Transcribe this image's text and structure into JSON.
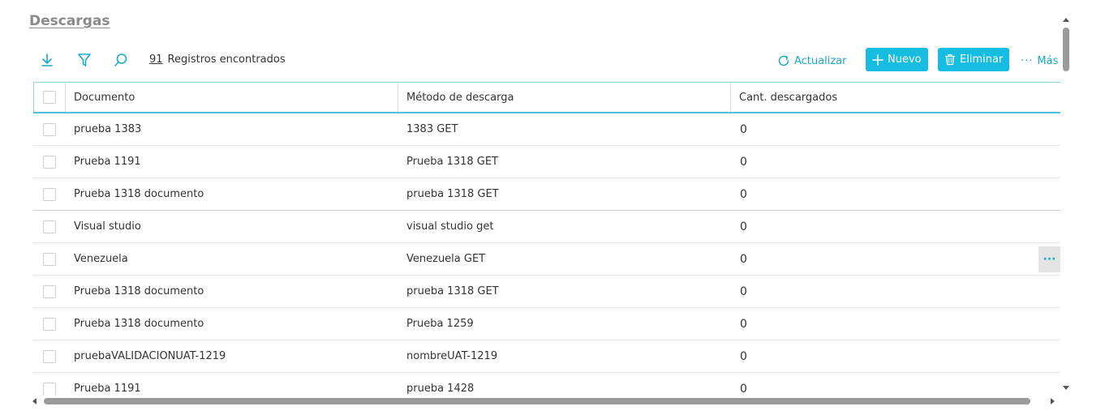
{
  "page": {
    "title": "Descargas"
  },
  "toolbar": {
    "count_number": "91",
    "count_label": "Registros encontrados",
    "refresh_label": "Actualizar",
    "new_label": "Nuevo",
    "delete_label": "Eliminar",
    "more_label": "Más",
    "icons": [
      "download-icon",
      "filter-icon",
      "search-icon"
    ],
    "accent_color": "#16bde0"
  },
  "grid": {
    "columns": [
      "Documento",
      "Método de descarga",
      "Cant. descargados"
    ],
    "rows": [
      {
        "documento": "prueba 1383",
        "metodo": "1383 GET",
        "cantidad": "0"
      },
      {
        "documento": "Prueba 1191",
        "metodo": "Prueba 1318 GET",
        "cantidad": "0"
      },
      {
        "documento": "Prueba 1318 documento",
        "metodo": "prueba 1318 GET",
        "cantidad": "0"
      },
      {
        "documento": "Visual studio",
        "metodo": "visual studio get",
        "cantidad": "0"
      },
      {
        "documento": "Venezuela",
        "metodo": "Venezuela GET",
        "cantidad": "0"
      },
      {
        "documento": "Prueba 1318 documento",
        "metodo": "prueba 1318 GET",
        "cantidad": "0"
      },
      {
        "documento": "Prueba 1318 documento",
        "metodo": "Prueba 1259",
        "cantidad": "0"
      },
      {
        "documento": "pruebaVALIDACIONUAT-1219",
        "metodo": "nombreUAT-1219",
        "cantidad": "0"
      },
      {
        "documento": "Prueba 1191",
        "metodo": "prueba 1428",
        "cantidad": "0"
      }
    ],
    "row_menu_label": "···"
  }
}
